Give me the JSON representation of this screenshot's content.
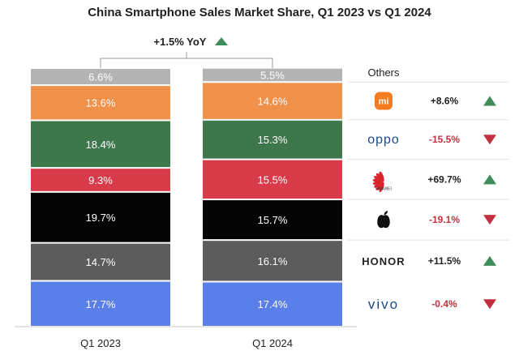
{
  "chart_data": {
    "type": "bar",
    "stacked": true,
    "title": "China Smartphone Sales Market Share, Q1 2023 vs Q1 2024",
    "categories": [
      "Q1 2023",
      "Q1 2024"
    ],
    "yoy_total_label": "+1.5% YoY",
    "yoy_direction": "up",
    "series": [
      {
        "brand": "vivo",
        "brand_text": "vivo",
        "color": "#5b7fe8",
        "values": [
          17.7,
          17.4
        ],
        "labels": [
          "17.7%",
          "17.4%"
        ],
        "change": "-0.4%",
        "direction": "down"
      },
      {
        "brand": "honor",
        "brand_text": "HONOR",
        "color": "#5c5c5c",
        "values": [
          14.7,
          16.1
        ],
        "labels": [
          "14.7%",
          "16.1%"
        ],
        "change": "+11.5%",
        "direction": "up"
      },
      {
        "brand": "apple",
        "brand_text": "",
        "color": "#050505",
        "values": [
          19.7,
          15.7
        ],
        "labels": [
          "19.7%",
          "15.7%"
        ],
        "change": "-19.1%",
        "direction": "down"
      },
      {
        "brand": "huawei",
        "brand_text": "HUAWEI",
        "color": "#d93b4a",
        "values": [
          9.3,
          15.5
        ],
        "labels": [
          "9.3%",
          "15.5%"
        ],
        "change": "+69.7%",
        "direction": "up"
      },
      {
        "brand": "oppo",
        "brand_text": "oppo",
        "color": "#3f774d",
        "values": [
          18.4,
          15.3
        ],
        "labels": [
          "18.4%",
          "15.3%"
        ],
        "change": "-15.5%",
        "direction": "down"
      },
      {
        "brand": "xiaomi",
        "brand_text": "mi",
        "color": "#f0914a",
        "values": [
          13.6,
          14.6
        ],
        "labels": [
          "13.6%",
          "14.6%"
        ],
        "change": "+8.6%",
        "direction": "up"
      },
      {
        "brand": "others",
        "brand_text": "Others",
        "color": "#b3b3b3",
        "values": [
          6.6,
          5.5
        ],
        "labels": [
          "6.6%",
          "5.5%"
        ],
        "change": "",
        "direction": ""
      }
    ],
    "colors": {
      "up": "#3d8c5a",
      "down": "#c0303f",
      "up_text": "#222222",
      "down_text": "#c0303f",
      "brand_logo": "#1a4a8a",
      "xiaomi_logo_bg": "#f47b20"
    }
  }
}
